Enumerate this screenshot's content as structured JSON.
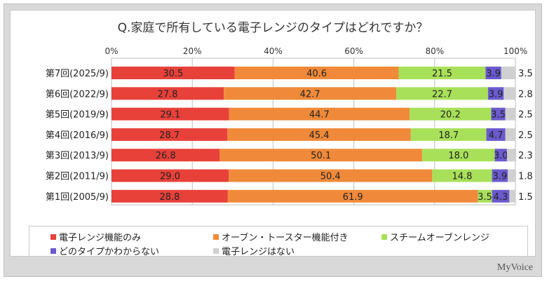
{
  "chart_data": {
    "type": "bar",
    "orientation": "horizontal-stacked-100",
    "title": "Q.家庭で所有している電子レンジのタイプはどれですか？",
    "x_ticks": [
      "0%",
      "20%",
      "40%",
      "60%",
      "80%",
      "100%"
    ],
    "xlim": [
      0,
      100
    ],
    "grid": true,
    "categories": [
      "第7回(2025/9)",
      "第6回(2022/9)",
      "第5回(2019/9)",
      "第4回(2016/9)",
      "第3回(2013/9)",
      "第2回(2011/9)",
      "第1回(2005/9)"
    ],
    "series": [
      {
        "name": "電子レンジ機能のみ",
        "color": "#e8413a",
        "values": [
          30.5,
          27.8,
          29.1,
          28.7,
          26.8,
          29.0,
          28.8
        ]
      },
      {
        "name": "オーブン・トースター機能付き",
        "color": "#f08a3a",
        "values": [
          40.6,
          42.7,
          44.7,
          45.4,
          50.1,
          50.4,
          61.9
        ]
      },
      {
        "name": "スチームオーブンレンジ",
        "color": "#a8e05a",
        "values": [
          21.5,
          22.7,
          20.2,
          18.7,
          18.0,
          14.8,
          3.5
        ]
      },
      {
        "name": "どのタイプかわからない",
        "color": "#6a5acd",
        "values": [
          3.9,
          3.9,
          3.5,
          4.7,
          3.0,
          3.9,
          4.3
        ]
      },
      {
        "name": "電子レンジはない",
        "color": "#d0d0d0",
        "values": [
          3.5,
          2.8,
          2.5,
          2.5,
          2.3,
          1.8,
          1.5
        ]
      }
    ],
    "legend_position": "bottom"
  },
  "brand": "MyVoice"
}
